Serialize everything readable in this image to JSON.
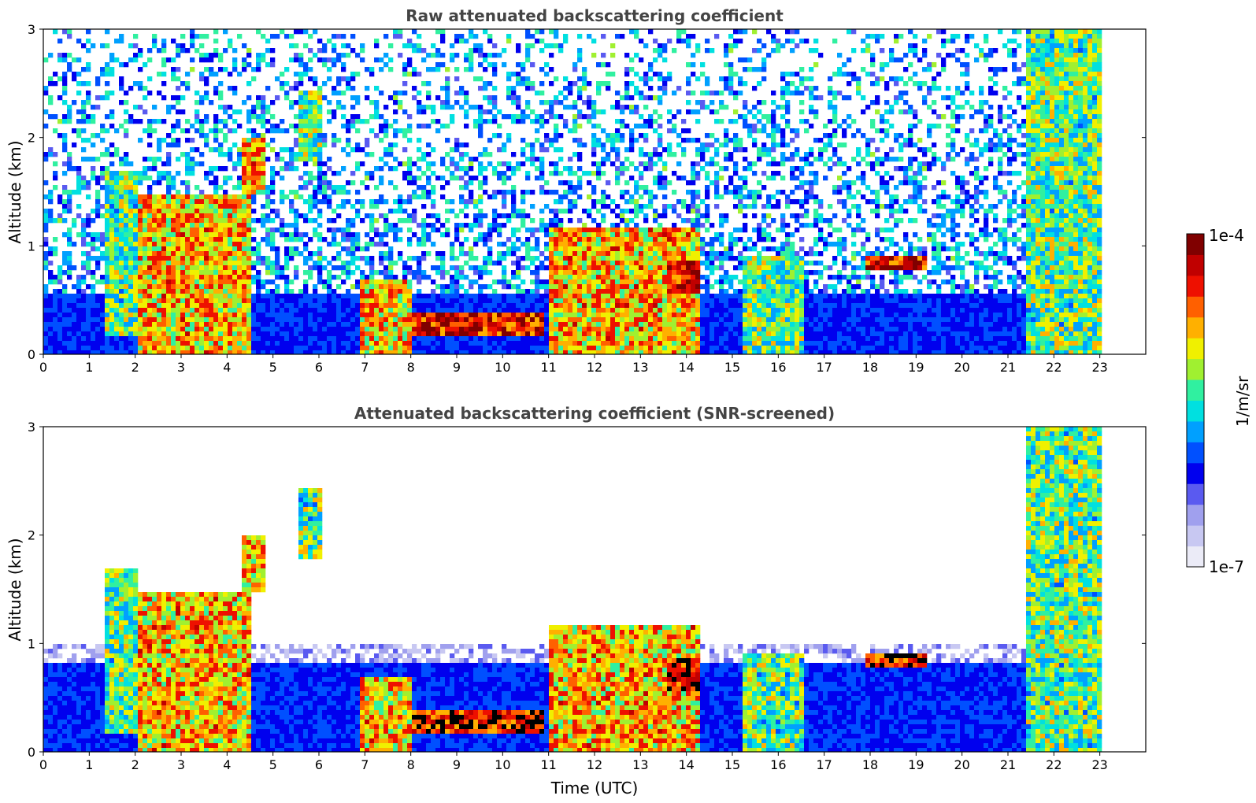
{
  "chart_data": [
    {
      "type": "heatmap",
      "title": "Raw attenuated backscattering coefficient",
      "xlabel": "",
      "ylabel": "Altitude (km)",
      "xlim": [
        0,
        24
      ],
      "ylim": [
        0,
        3
      ],
      "x_ticks": [
        "0",
        "1",
        "2",
        "3",
        "4",
        "5",
        "6",
        "7",
        "8",
        "9",
        "10",
        "11",
        "12",
        "13",
        "14",
        "15",
        "16",
        "17",
        "18",
        "19",
        "20",
        "21",
        "22",
        "23"
      ],
      "y_ticks": [
        "0",
        "1",
        "2",
        "3"
      ],
      "data_extent_hours": [
        0,
        23
      ],
      "features": [
        {
          "time": [
            1.3,
            2.0
          ],
          "altitude": [
            0.2,
            1.7
          ],
          "level": "high"
        },
        {
          "time": [
            2.0,
            4.5
          ],
          "altitude": [
            0.0,
            1.5
          ],
          "level": "very high"
        },
        {
          "time": [
            4.3,
            4.8
          ],
          "altitude": [
            1.5,
            2.0
          ],
          "level": "very high"
        },
        {
          "time": [
            5.5,
            6.0
          ],
          "altitude": [
            1.8,
            2.45
          ],
          "level": "high"
        },
        {
          "time": [
            6.8,
            8.0
          ],
          "altitude": [
            0.0,
            0.7
          ],
          "level": "very high"
        },
        {
          "time": [
            8.0,
            10.8
          ],
          "altitude": [
            0.2,
            0.4
          ],
          "level": "max"
        },
        {
          "time": [
            11.0,
            14.2
          ],
          "altitude": [
            0.0,
            1.2
          ],
          "level": "very high"
        },
        {
          "time": [
            13.5,
            14.2
          ],
          "altitude": [
            0.6,
            0.9
          ],
          "level": "max"
        },
        {
          "time": [
            15.2,
            16.5
          ],
          "altitude": [
            0.0,
            0.95
          ],
          "level": "high"
        },
        {
          "time": [
            17.8,
            19.2
          ],
          "altitude": [
            0.8,
            0.95
          ],
          "level": "max"
        },
        {
          "time": [
            21.3,
            23.0
          ],
          "altitude": [
            0.0,
            3.0
          ],
          "level": "high"
        }
      ]
    },
    {
      "type": "heatmap",
      "title": "Attenuated backscattering coefficient (SNR-screened)",
      "xlabel": "Time (UTC)",
      "ylabel": "Altitude (km)",
      "xlim": [
        0,
        24
      ],
      "ylim": [
        0,
        3
      ],
      "x_ticks": [
        "0",
        "1",
        "2",
        "3",
        "4",
        "5",
        "6",
        "7",
        "8",
        "9",
        "10",
        "11",
        "12",
        "13",
        "14",
        "15",
        "16",
        "17",
        "18",
        "19",
        "20",
        "21",
        "22",
        "23"
      ],
      "y_ticks": [
        "0",
        "1",
        "2",
        "3"
      ],
      "data_extent_hours": [
        0,
        23
      ],
      "screened_boundary_layer_top_km": 0.85
    }
  ],
  "colorbar": {
    "max_label": "1e-4",
    "min_label": "1e-7",
    "unit": "1/m/sr",
    "colors": [
      "#ebebf7",
      "#c8c8f2",
      "#a0a0ee",
      "#5a5af0",
      "#0000ee",
      "#0050ff",
      "#00a0ff",
      "#00e0e0",
      "#30f0a0",
      "#a0f030",
      "#f0f000",
      "#ffb000",
      "#ff6000",
      "#ee1000",
      "#c00000",
      "#800000"
    ]
  }
}
